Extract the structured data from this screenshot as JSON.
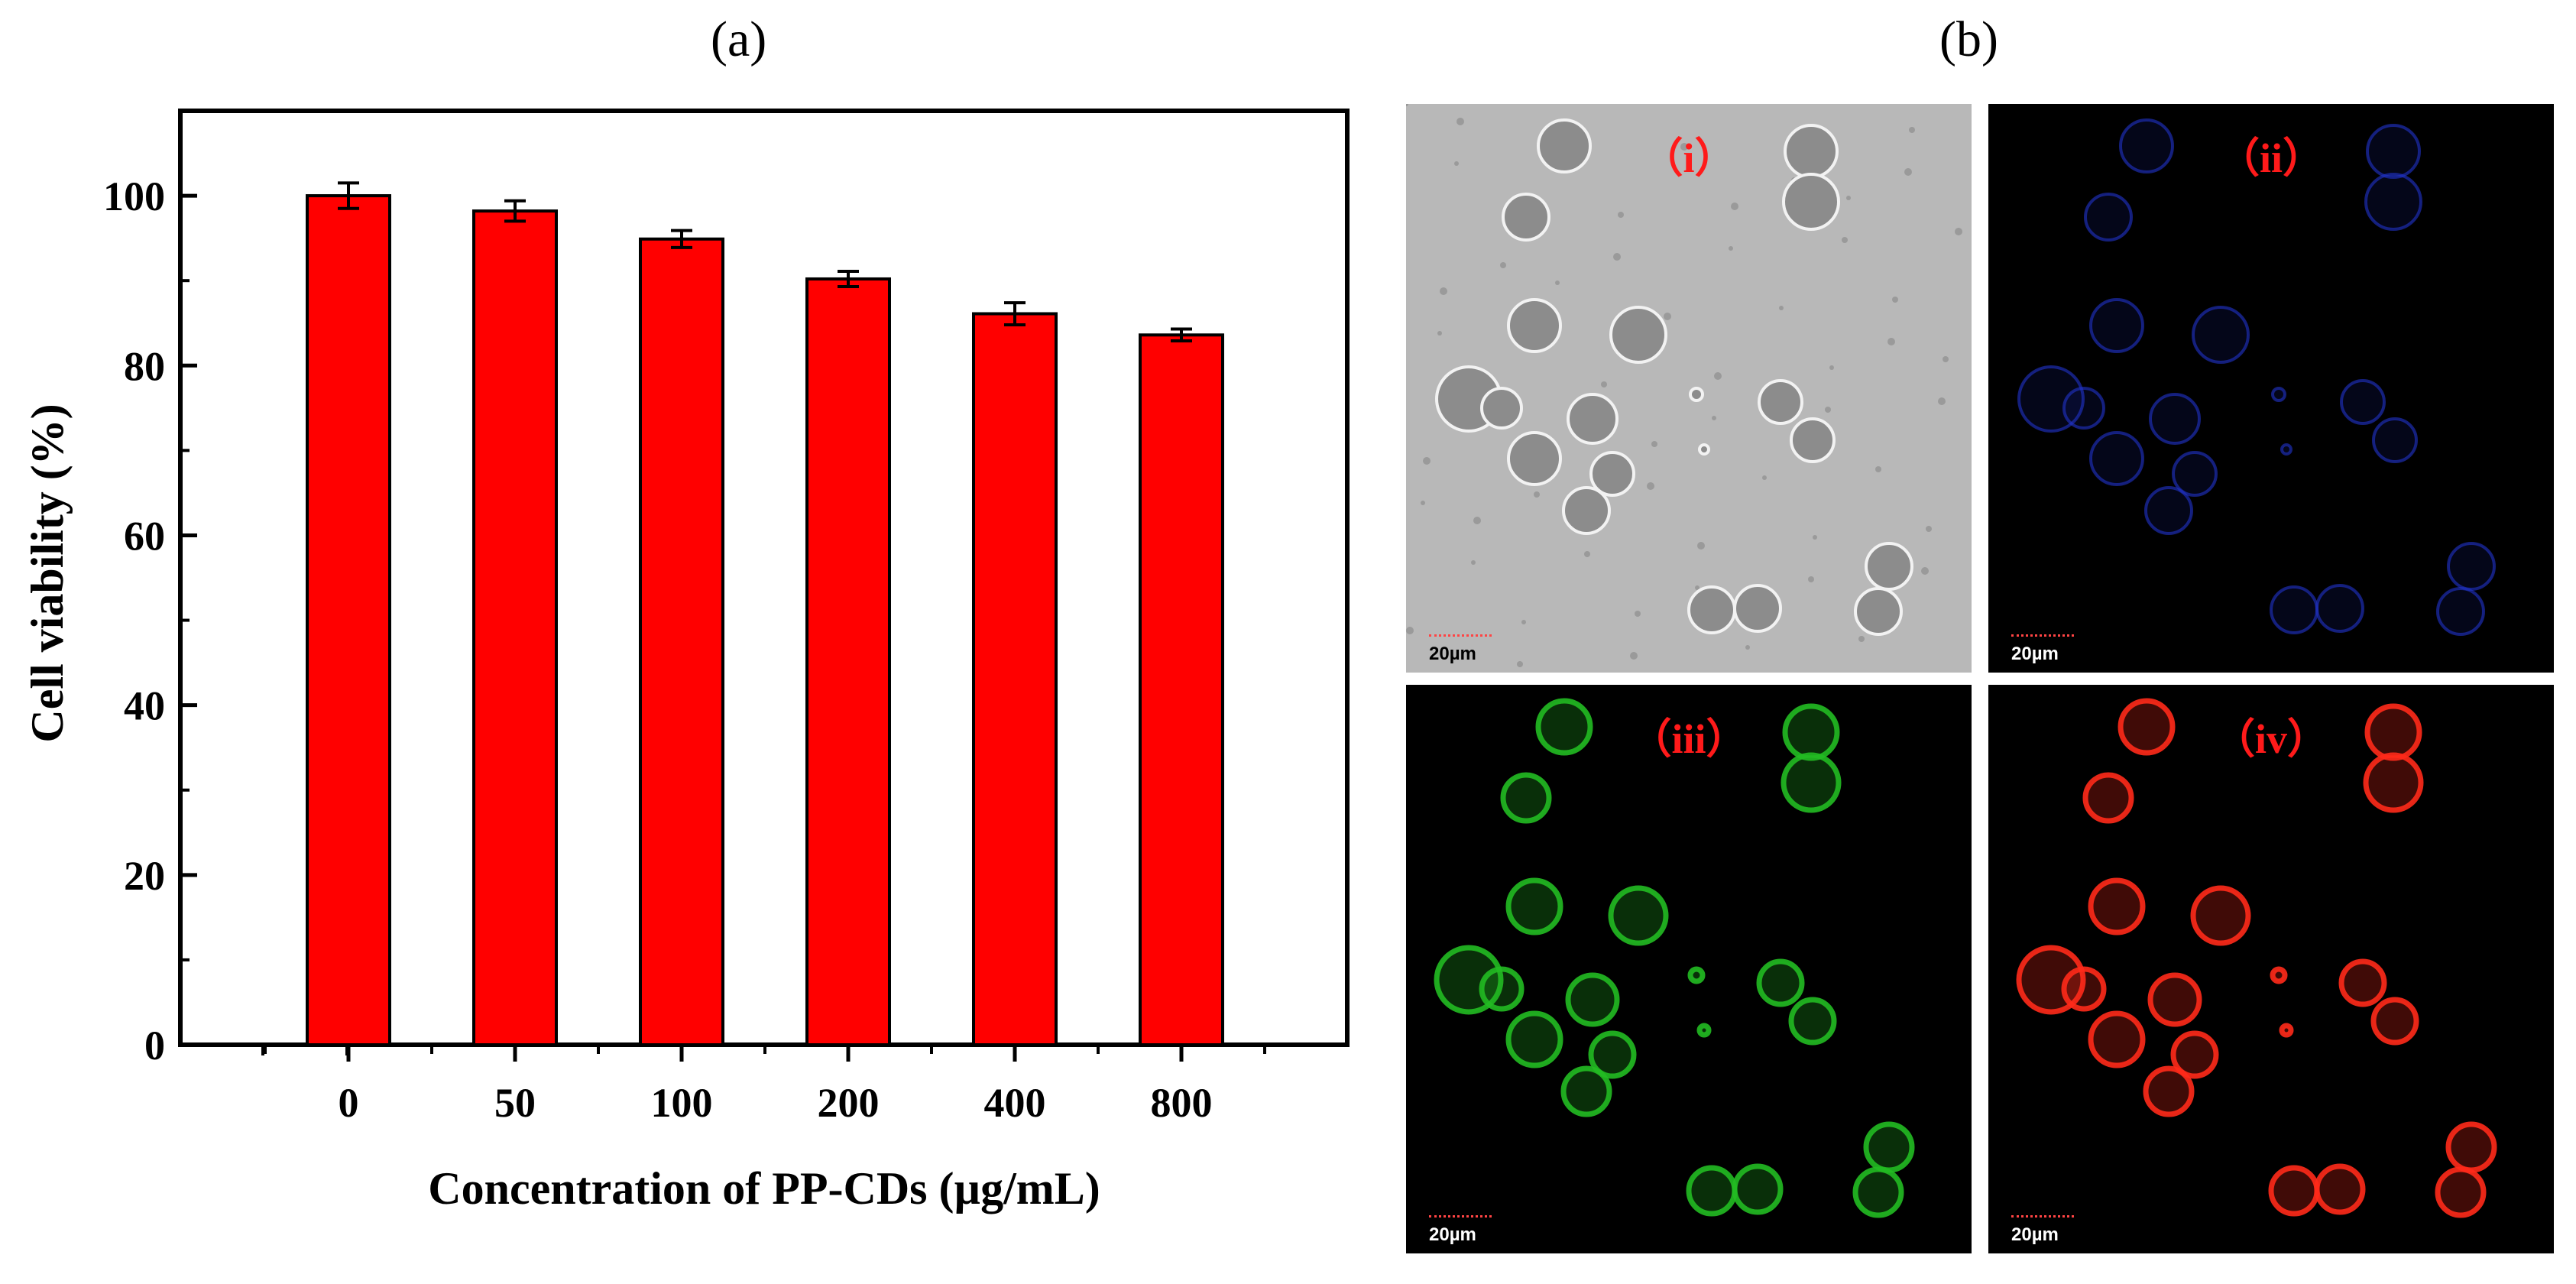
{
  "panels": {
    "a_label": "(a)",
    "b_label": "(b)"
  },
  "chart_data": {
    "type": "bar",
    "categories": [
      "0",
      "50",
      "100",
      "200",
      "400",
      "800"
    ],
    "values": [
      100.0,
      98.2,
      94.9,
      90.2,
      86.1,
      83.6
    ],
    "errors": [
      1.5,
      1.2,
      1.0,
      0.9,
      1.3,
      0.7
    ],
    "xlabel": "Concentration of PP-CDs (µg/mL)",
    "ylabel": "Cell viability (%)",
    "ylim": [
      0,
      110
    ],
    "yticks": [
      "0",
      "20",
      "40",
      "60",
      "80",
      "100"
    ],
    "grid": false,
    "bar_color": "#ff0000"
  },
  "images": [
    {
      "label": "（i）",
      "scale": "20µm",
      "channel": "brightfield"
    },
    {
      "label": "（ii）",
      "scale": "20µm",
      "channel": "blue"
    },
    {
      "label": "（iii）",
      "scale": "20µm",
      "channel": "green"
    },
    {
      "label": "（iv）",
      "scale": "20µm",
      "channel": "red"
    }
  ],
  "colors": {
    "brightfield_bg": "#b8b8b8",
    "blue": "#2233cc",
    "green": "#22bb22",
    "red": "#ff2a1a",
    "label_red": "#ff1a1a"
  }
}
